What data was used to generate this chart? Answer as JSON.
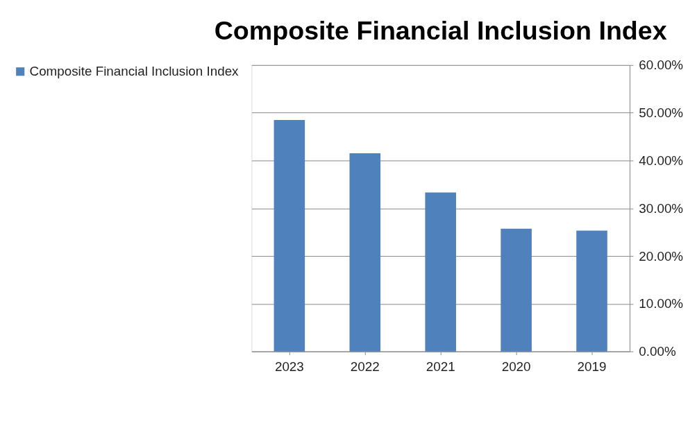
{
  "chart_data": {
    "type": "bar",
    "title": "Composite Financial Inclusion Index",
    "categories": [
      "2023",
      "2022",
      "2021",
      "2020",
      "2019"
    ],
    "series": [
      {
        "name": "Composite Financial Inclusion Index",
        "color": "#4f81bd",
        "values": [
          48.5,
          41.5,
          33.3,
          25.7,
          25.3
        ]
      }
    ],
    "ylim": [
      0,
      60
    ],
    "yticks": [
      {
        "value": 0,
        "label": "0.00%"
      },
      {
        "value": 10,
        "label": "10.00%"
      },
      {
        "value": 20,
        "label": "20.00%"
      },
      {
        "value": 30,
        "label": "30.00%"
      },
      {
        "value": 40,
        "label": "40.00%"
      },
      {
        "value": 50,
        "label": "50.00%"
      },
      {
        "value": 60,
        "label": "60.00%"
      }
    ],
    "grid": "y",
    "legend": "left"
  }
}
